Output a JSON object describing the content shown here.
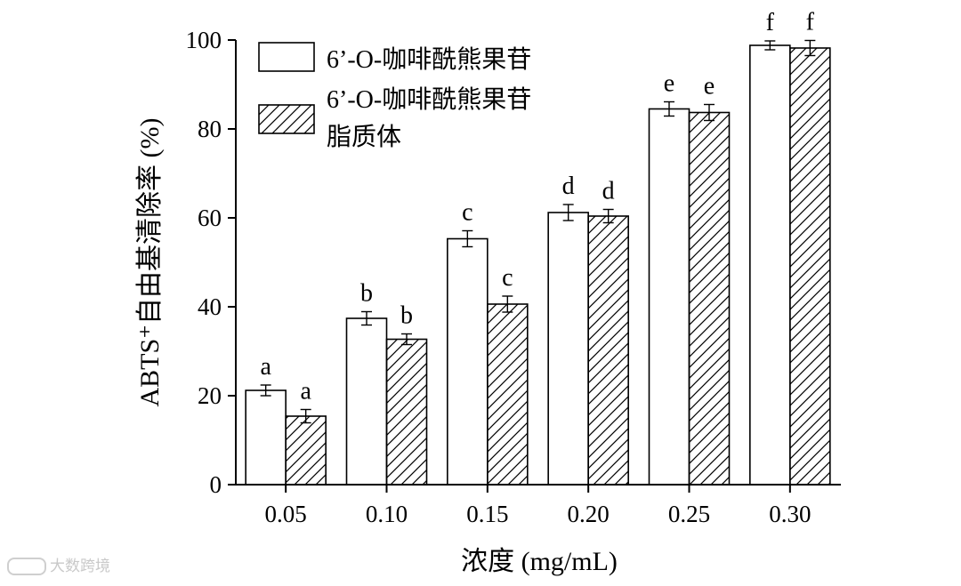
{
  "chart_data": {
    "type": "bar",
    "ylabel": "ABTS⁺自由基清除率 (%)",
    "xlabel": "浓度 (mg/mL)",
    "ylim": [
      0,
      100
    ],
    "yticks": [
      0,
      20,
      40,
      60,
      80,
      100
    ],
    "categories": [
      "0.05",
      "0.10",
      "0.15",
      "0.20",
      "0.25",
      "0.30"
    ],
    "legend_position": "top-left",
    "series": [
      {
        "name": "6’-O-咖啡酰熊果苷",
        "style": "open",
        "values": [
          21.2,
          37.4,
          55.3,
          61.2,
          84.5,
          98.8
        ],
        "errors": [
          1.2,
          1.5,
          1.8,
          1.8,
          1.6,
          1.0
        ],
        "labels": [
          "a",
          "b",
          "c",
          "d",
          "e",
          "f"
        ]
      },
      {
        "name_lines": [
          "6’-O-咖啡酰熊果苷",
          "脂质体"
        ],
        "style": "hatched",
        "values": [
          15.4,
          32.7,
          40.6,
          60.4,
          83.7,
          98.2
        ],
        "errors": [
          1.5,
          1.2,
          1.8,
          1.5,
          1.8,
          1.7
        ],
        "labels": [
          "a",
          "b",
          "c",
          "d",
          "e",
          "f"
        ]
      }
    ]
  },
  "watermark": "大数跨境"
}
